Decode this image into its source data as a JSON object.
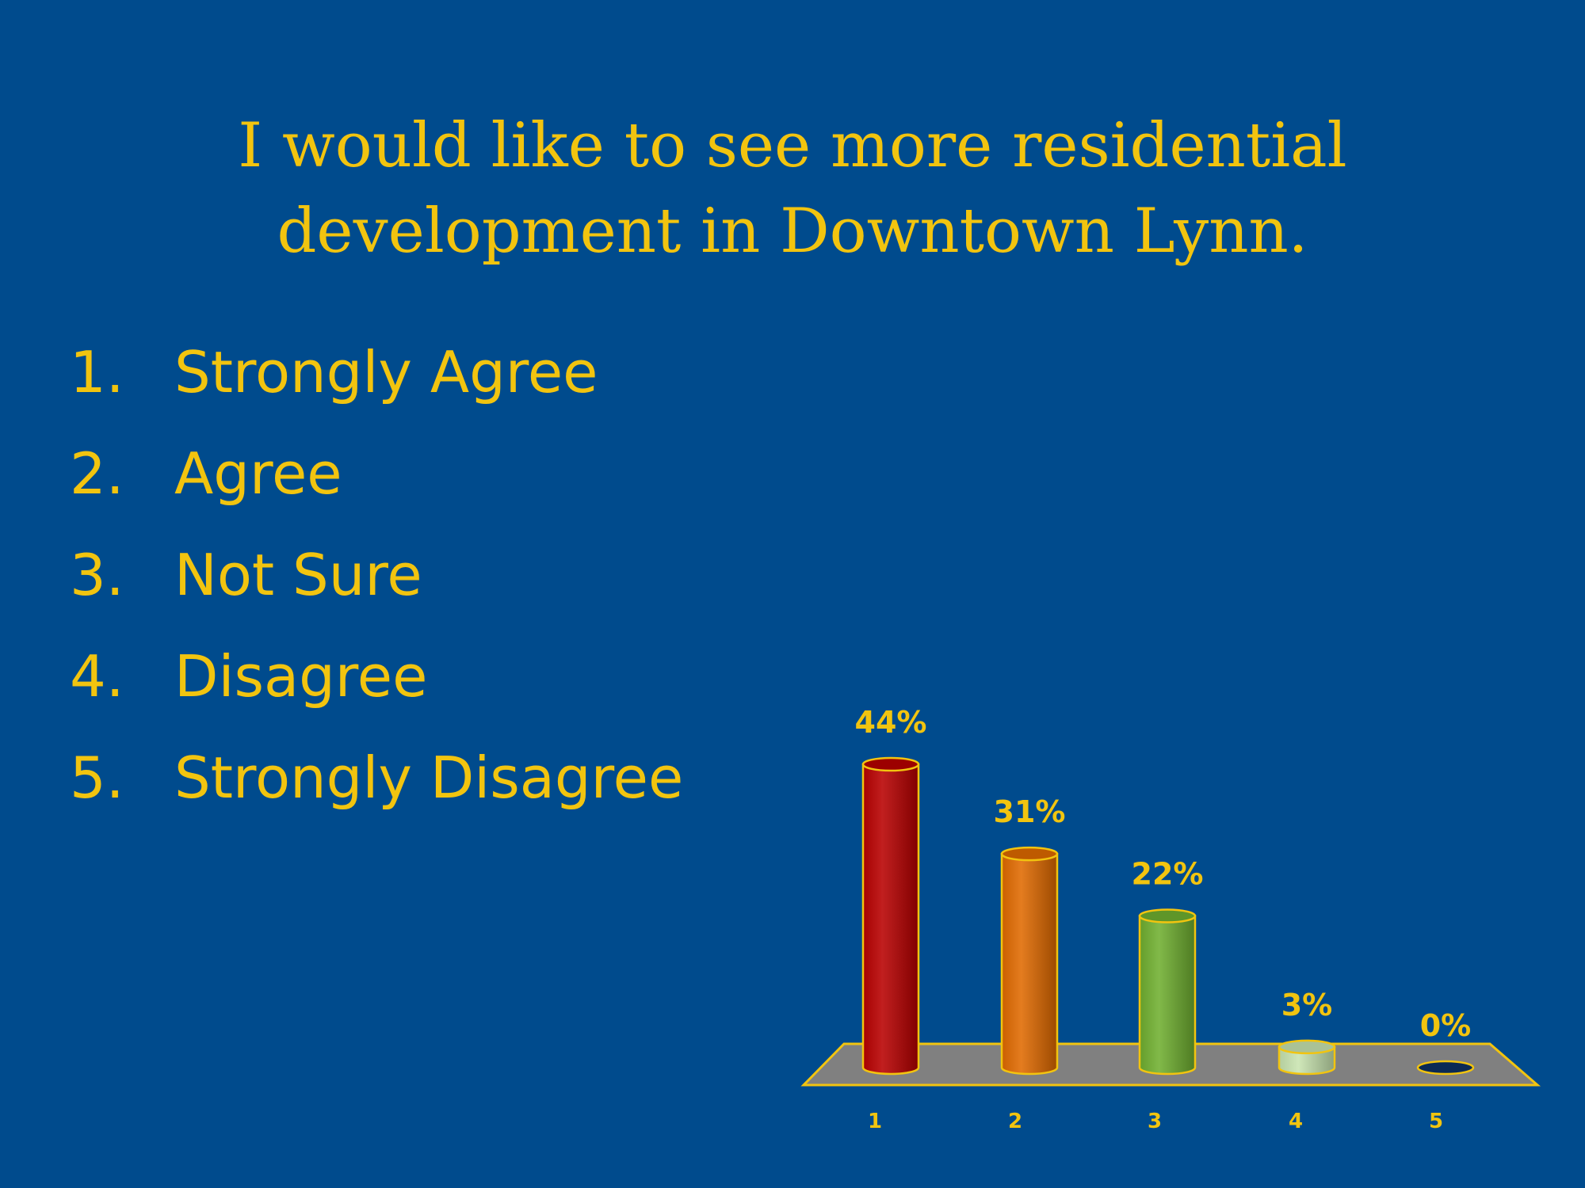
{
  "slide": {
    "title_lines": [
      "I would like to see more residential",
      "development in Downtown Lynn."
    ],
    "options": [
      {
        "number": "1.",
        "label": "Strongly Agree"
      },
      {
        "number": "2.",
        "label": "Agree"
      },
      {
        "number": "3.",
        "label": "Not Sure"
      },
      {
        "number": "4.",
        "label": "Disagree"
      },
      {
        "number": "5.",
        "label": "Strongly Disagree"
      }
    ]
  },
  "colors": {
    "background": "#004b8d",
    "text": "#f2c40f",
    "floor": "#808080",
    "bars": [
      "#b80000",
      "#e06a00",
      "#70b030",
      "#c8e4b0",
      "#0b2a55"
    ]
  },
  "chart_data": {
    "type": "bar",
    "categories": [
      "1",
      "2",
      "3",
      "4",
      "5"
    ],
    "values": [
      44,
      31,
      22,
      3,
      0
    ],
    "value_labels": [
      "44%",
      "31%",
      "22%",
      "3%",
      "0%"
    ],
    "title": "",
    "xlabel": "",
    "ylabel": "",
    "ylim": [
      0,
      44
    ],
    "grid": false,
    "legend": "none",
    "style": "3d-cylinder"
  }
}
